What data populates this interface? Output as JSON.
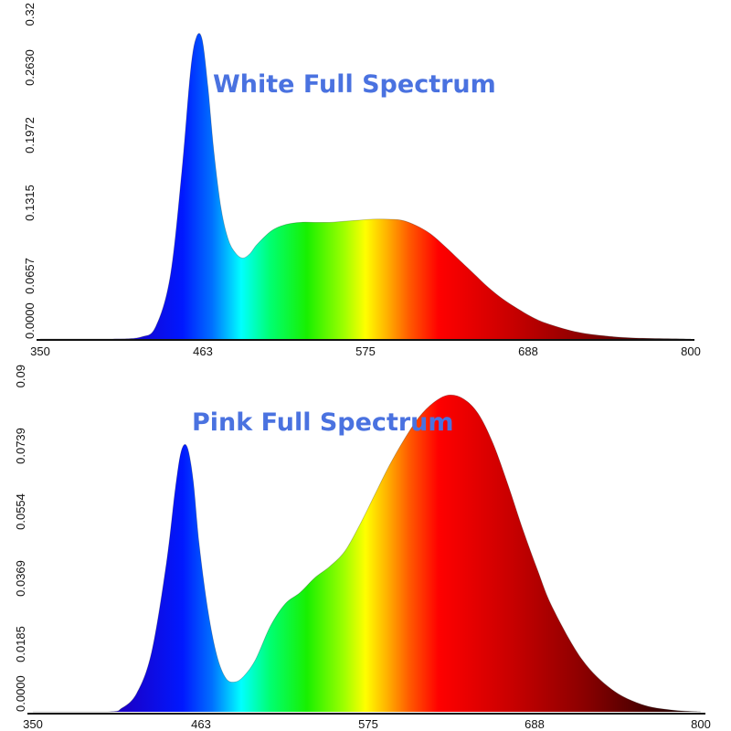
{
  "chart_data": [
    {
      "type": "area",
      "title": "White Full Spectrum",
      "xlabel": "",
      "ylabel": "",
      "xlim": [
        350,
        800
      ],
      "ylim": [
        0,
        0.32
      ],
      "x_ticks": [
        "350",
        "463",
        "575",
        "688",
        "800"
      ],
      "y_ticks": [
        "0.0000",
        "0.0657",
        "0.1315",
        "0.1972",
        "0.2630",
        "0.32"
      ],
      "x": [
        350,
        400,
        420,
        430,
        440,
        448,
        454,
        458,
        462,
        466,
        470,
        475,
        480,
        485,
        490,
        495,
        500,
        510,
        520,
        530,
        540,
        550,
        560,
        570,
        580,
        590,
        600,
        610,
        620,
        630,
        640,
        650,
        660,
        670,
        680,
        690,
        700,
        720,
        740,
        760,
        800
      ],
      "values": [
        0,
        0,
        0.002,
        0.012,
        0.06,
        0.16,
        0.255,
        0.287,
        0.285,
        0.24,
        0.18,
        0.125,
        0.095,
        0.082,
        0.077,
        0.081,
        0.09,
        0.103,
        0.109,
        0.111,
        0.111,
        0.111,
        0.112,
        0.113,
        0.114,
        0.114,
        0.113,
        0.108,
        0.1,
        0.088,
        0.075,
        0.062,
        0.049,
        0.038,
        0.029,
        0.021,
        0.015,
        0.007,
        0.003,
        0.001,
        0
      ]
    },
    {
      "type": "area",
      "title": "Pink Full Spectrum",
      "xlabel": "",
      "ylabel": "",
      "xlim": [
        350,
        800
      ],
      "ylim": [
        0,
        0.09
      ],
      "x_ticks": [
        "350",
        "463",
        "575",
        "688",
        "800"
      ],
      "y_ticks": [
        "0.0000",
        "0.0185",
        "0.0369",
        "0.0554",
        "0.0739",
        "0.09"
      ],
      "x": [
        350,
        400,
        410,
        420,
        430,
        440,
        446,
        450,
        454,
        458,
        462,
        468,
        474,
        480,
        486,
        492,
        500,
        510,
        520,
        530,
        540,
        550,
        560,
        570,
        580,
        590,
        600,
        610,
        620,
        630,
        640,
        650,
        660,
        670,
        680,
        690,
        700,
        720,
        740,
        760,
        780,
        800
      ],
      "values": [
        0,
        0,
        0.001,
        0.005,
        0.016,
        0.04,
        0.06,
        0.07,
        0.071,
        0.062,
        0.045,
        0.027,
        0.015,
        0.009,
        0.008,
        0.0095,
        0.014,
        0.023,
        0.029,
        0.032,
        0.036,
        0.039,
        0.043,
        0.05,
        0.058,
        0.066,
        0.073,
        0.079,
        0.083,
        0.085,
        0.084,
        0.08,
        0.072,
        0.061,
        0.049,
        0.038,
        0.028,
        0.014,
        0.006,
        0.002,
        0.0005,
        0
      ]
    }
  ]
}
